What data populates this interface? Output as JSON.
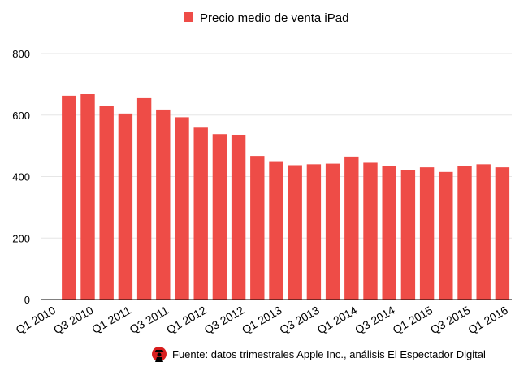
{
  "chart_data": {
    "type": "bar",
    "legend": {
      "position": "top",
      "entries": [
        "Precio medio de venta iPad"
      ]
    },
    "series": [
      {
        "name": "Precio medio de venta iPad",
        "color": "#ee4c47",
        "values": [
          null,
          663,
          668,
          630,
          605,
          655,
          618,
          593,
          559,
          538,
          536,
          467,
          450,
          437,
          440,
          442,
          465,
          445,
          433,
          420,
          430,
          415,
          433,
          440,
          430
        ]
      }
    ],
    "categories": [
      "Q1 2010",
      "Q2 2010",
      "Q3 2010",
      "Q4 2010",
      "Q1 2011",
      "Q2 2011",
      "Q3 2011",
      "Q4 2011",
      "Q1 2012",
      "Q2 2012",
      "Q3 2012",
      "Q4 2012",
      "Q1 2013",
      "Q2 2013",
      "Q3 2013",
      "Q4 2013",
      "Q1 2014",
      "Q2 2014",
      "Q3 2014",
      "Q4 2014",
      "Q1 2015",
      "Q2 2015",
      "Q3 2015",
      "Q4 2015",
      "Q1 2016"
    ],
    "x_tick_labels": [
      "Q1 2010",
      "Q3 2010",
      "Q1 2011",
      "Q3 2011",
      "Q1 2012",
      "Q3 2012",
      "Q1 2013",
      "Q3 2013",
      "Q1 2014",
      "Q3 2014",
      "Q1 2015",
      "Q3 2015",
      "Q1 2016"
    ],
    "ylim": [
      0,
      800
    ],
    "y_ticks": [
      0,
      200,
      400,
      600,
      800
    ],
    "grid": true,
    "title": "",
    "xlabel": "",
    "ylabel": ""
  },
  "source": {
    "text": "Fuente: datos trimestrales Apple Inc., análisis El Espectador Digital",
    "icon": "spy-silhouette-icon"
  }
}
